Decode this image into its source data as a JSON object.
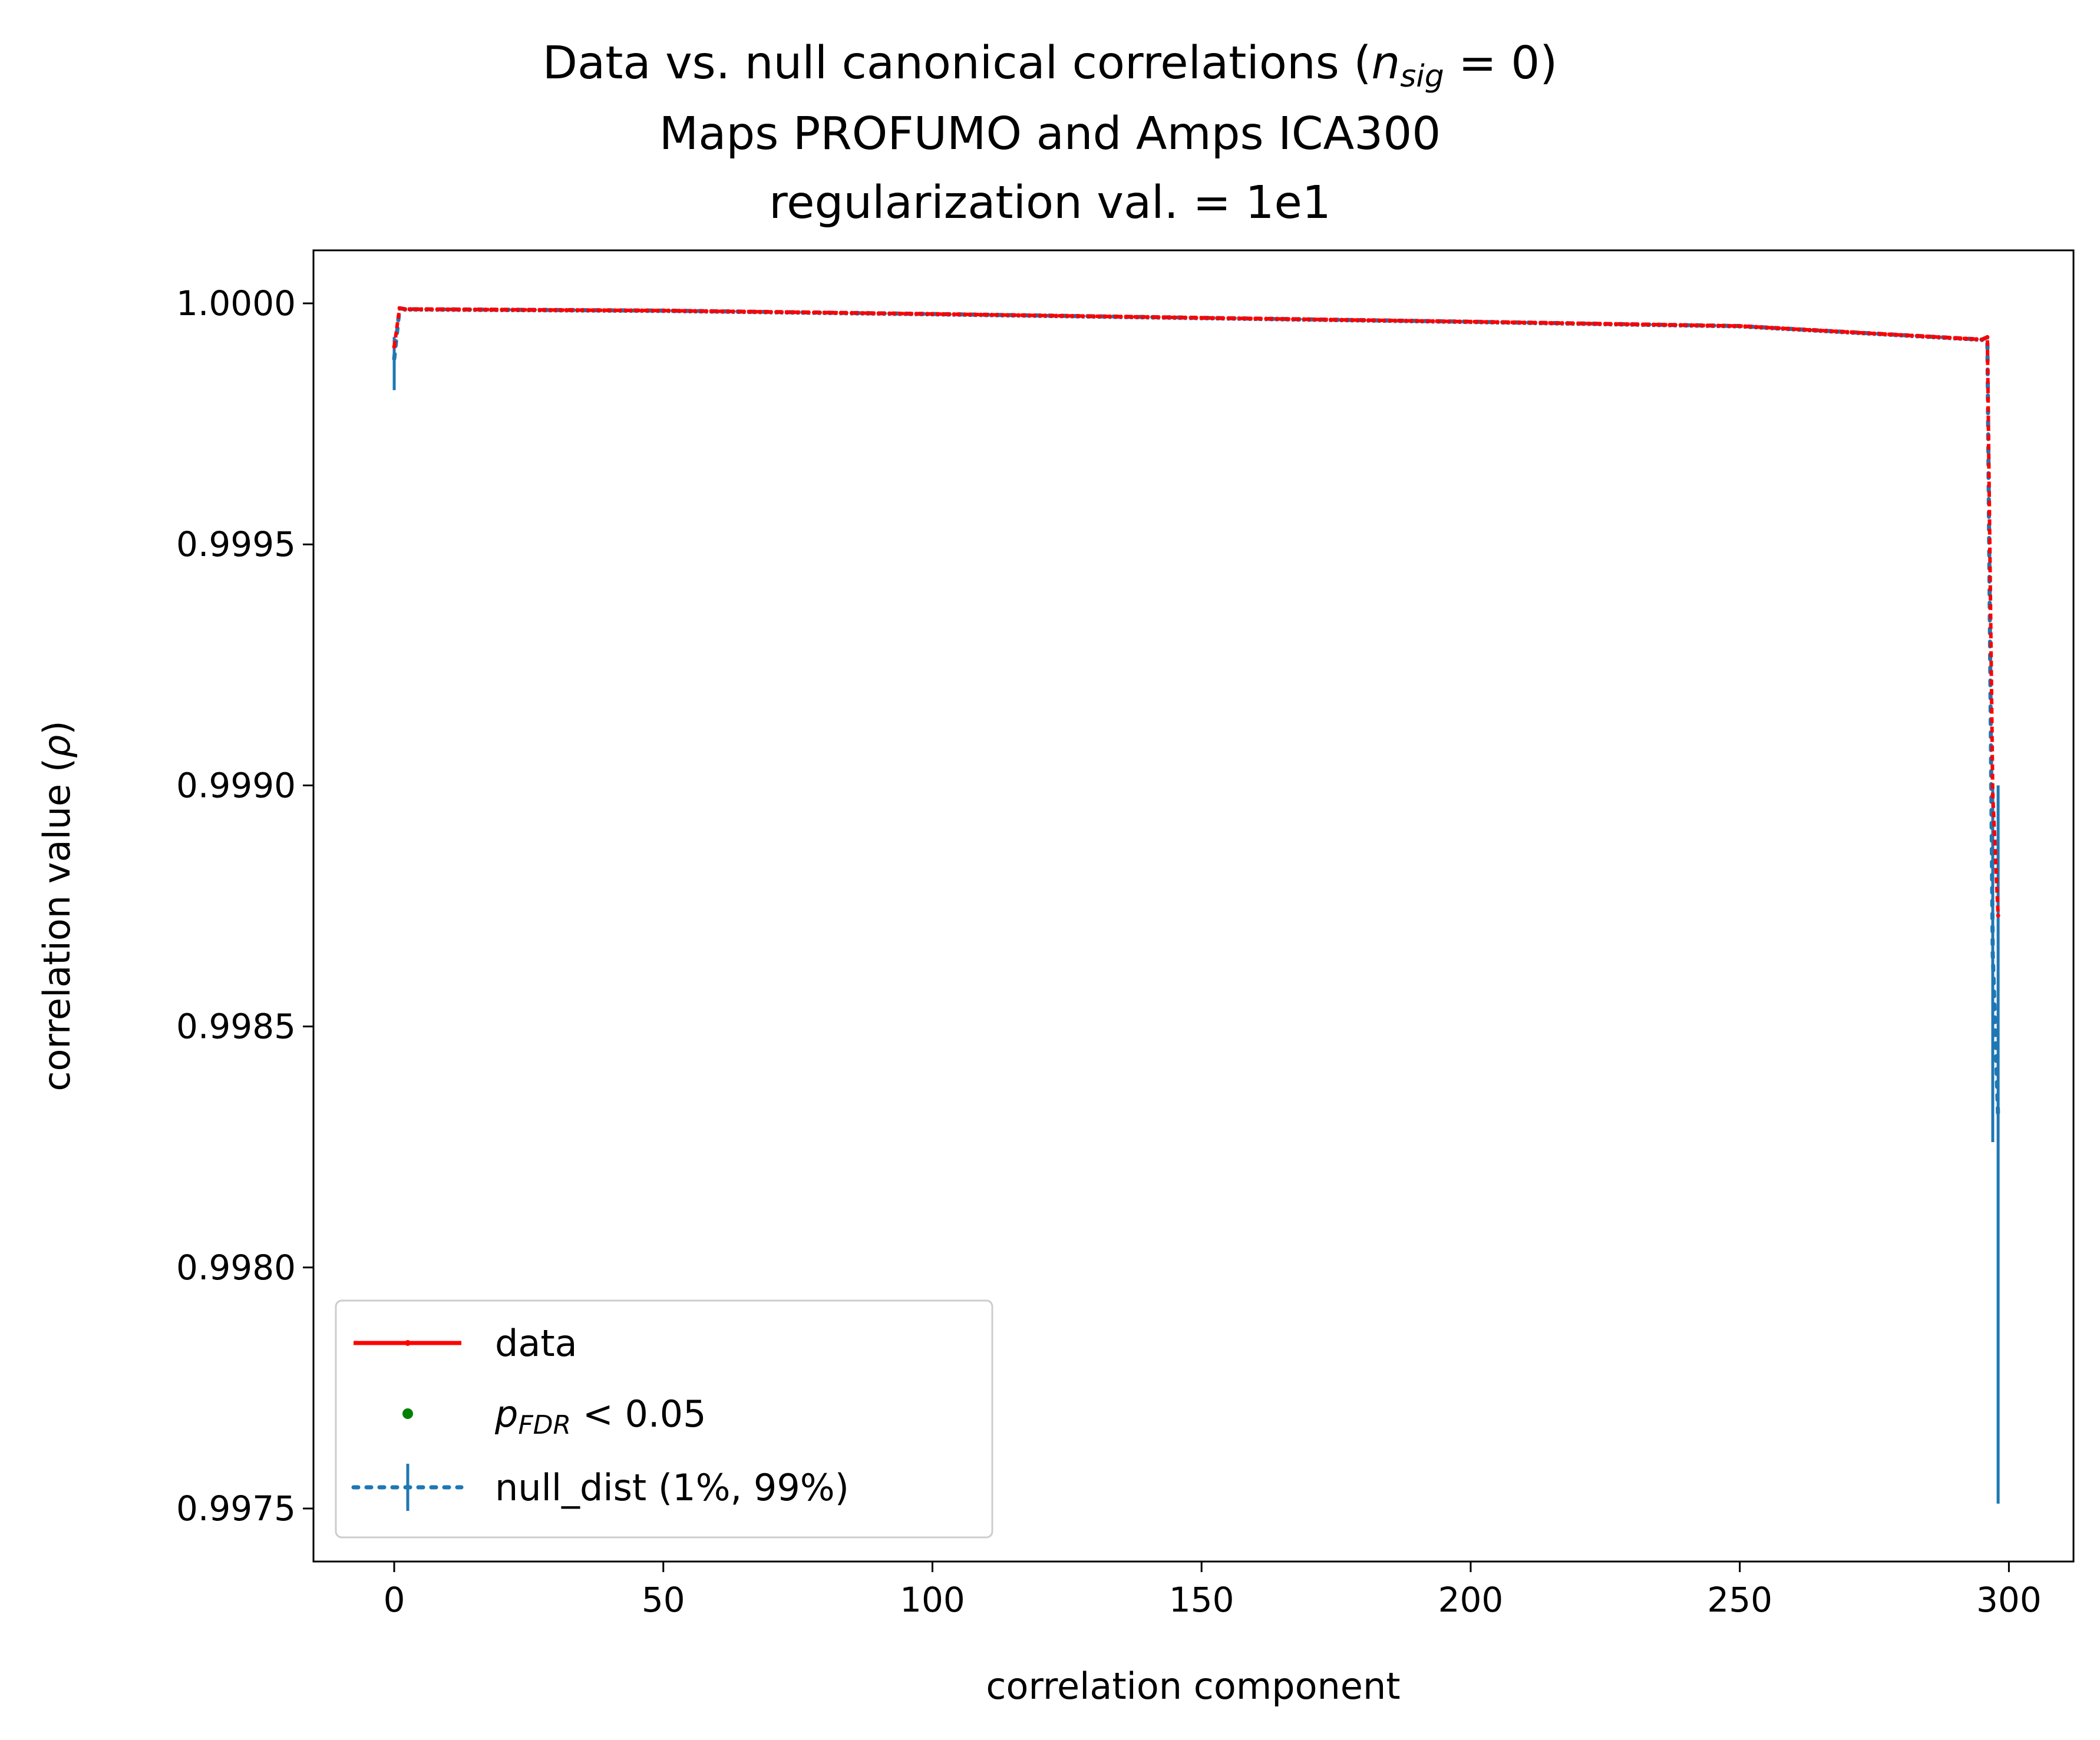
{
  "chart_data": {
    "type": "line",
    "title_lines": [
      "Data vs. null canonical correlations (",
      "Maps PROFUMO and Amps ICA300",
      "regularization val. = 1e1"
    ],
    "title_math": {
      "var": "n",
      "sub": "sig",
      "rest": " = 0)"
    },
    "xlabel": "correlation component",
    "ylabel_prefix": "correlation value (",
    "ylabel_symbol": "ρ",
    "ylabel_suffix": ")",
    "xlim": [
      -15,
      312
    ],
    "ylim": [
      0.99739,
      1.00011
    ],
    "xticks": [
      0,
      50,
      100,
      150,
      200,
      250,
      300
    ],
    "xtick_labels": [
      "0",
      "50",
      "100",
      "150",
      "200",
      "250",
      "300"
    ],
    "yticks": [
      0.9975,
      0.998,
      0.9985,
      0.999,
      0.9995,
      1.0
    ],
    "ytick_labels": [
      "0.9975",
      "0.9980",
      "0.9985",
      "0.9990",
      "0.9995",
      "1.0000"
    ],
    "legend_position": "lower-left",
    "legend": [
      {
        "label": "data",
        "style": "line-marker",
        "color": "#ff0000"
      },
      {
        "label_var": "p",
        "label_sub": "FDR",
        "label_rest": " < 0.05",
        "style": "dot",
        "color": "#008000"
      },
      {
        "label": "null_dist (1%, 99%)",
        "style": "dotted-errorbar",
        "color": "#1f77b4"
      }
    ],
    "series": [
      {
        "name": "data",
        "color": "#ff0000",
        "x": [
          0,
          1,
          2,
          50,
          100,
          150,
          200,
          250,
          295,
          296,
          297,
          298
        ],
        "y": [
          0.99991,
          0.99999,
          0.999988,
          0.999985,
          0.999978,
          0.99997,
          0.999962,
          0.999953,
          0.999925,
          0.99993,
          0.99898,
          0.99873
        ]
      },
      {
        "name": "null_dist (1%, 99%)",
        "color": "#1f77b4",
        "x": [
          0,
          1,
          2,
          50,
          100,
          150,
          200,
          250,
          295,
          296,
          297,
          298
        ],
        "y": [
          0.999885,
          0.99999,
          0.999988,
          0.999985,
          0.999978,
          0.99997,
          0.999962,
          0.999953,
          0.999925,
          0.99993,
          0.99865,
          0.99831
        ],
        "error_low": [
          0.99982,
          0.999985,
          0.999983,
          0.99998,
          0.999973,
          0.999965,
          0.999957,
          0.999948,
          0.99992,
          0.999925,
          0.99826,
          0.99751
        ],
        "error_high": [
          0.99993,
          0.999993,
          0.999991,
          0.999988,
          0.999981,
          0.999973,
          0.999965,
          0.999956,
          0.999928,
          0.999933,
          0.999,
          0.999
        ]
      }
    ],
    "significant_points": []
  }
}
